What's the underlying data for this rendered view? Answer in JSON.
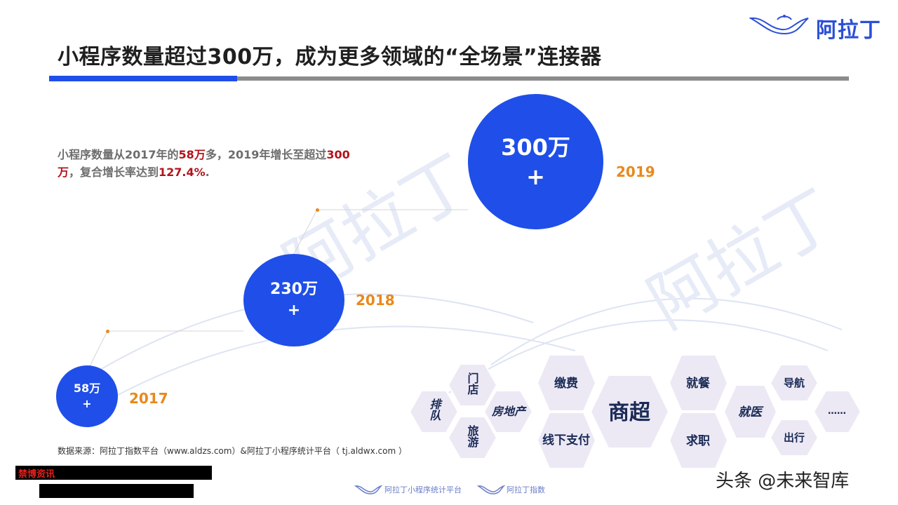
{
  "header": {
    "title": "小程序数量超过300万，成为更多领域的“全场景”连接器",
    "logo_text": "阿拉丁"
  },
  "description": {
    "part1": "小程序数量从2017年的",
    "highlight1": "58万",
    "part2": "多，2019年增长至超过",
    "highlight2": "300万",
    "part3": "，复合增长率达到",
    "highlight3": "127.4%",
    "part4": "."
  },
  "milestones": [
    {
      "year": "2017",
      "value": "58万",
      "suffix": "+"
    },
    {
      "year": "2018",
      "value": "230万",
      "suffix": "+"
    },
    {
      "year": "2019",
      "value": "300万",
      "suffix": "+"
    }
  ],
  "scenarios": [
    "排队",
    "门店",
    "旅游",
    "房地产",
    "缴费",
    "线下支付",
    "商超",
    "就餐",
    "求职",
    "就医",
    "导航",
    "出行",
    "……"
  ],
  "source": "数据来源：阿拉丁指数平台（www.aldzs.com）&阿拉丁小程序统计平台（ tj.aldwx.com ）",
  "redacted_label": "禁博资讯",
  "footer": {
    "logo1": "阿拉丁小程序统计平台",
    "logo2": "阿拉丁指数",
    "watermark": "头条 @未来智库"
  },
  "colors": {
    "accent": "#1f4fe8",
    "year": "#e8891c",
    "highlight": "#b5121b",
    "hex_fill": "#ece9f5"
  }
}
